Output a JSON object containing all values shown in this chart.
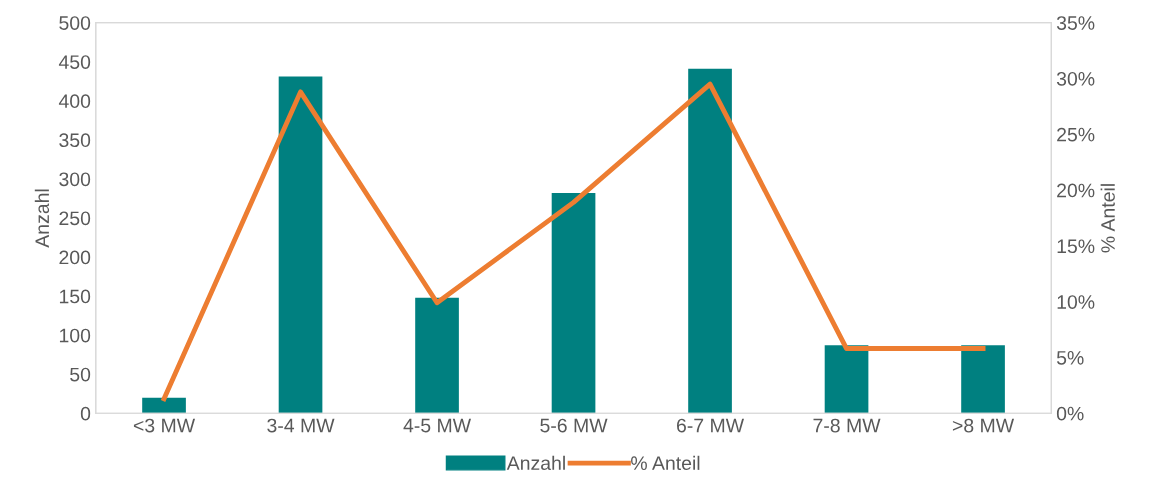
{
  "chart_data": {
    "type": "bar",
    "ylabel": "Anzahl",
    "y2label": "% Anteil",
    "categories": [
      "<3 MW",
      "3-4 MW",
      "4-5 MW",
      "5-6 MW",
      "6-7 MW",
      "7-8 MW",
      ">8 MW"
    ],
    "series": [
      {
        "name": "Anzahl",
        "color": "#008080",
        "values": [
          20,
          431,
          148,
          282,
          441,
          87,
          87
        ]
      },
      {
        "name": "% Anteil",
        "type": "line",
        "axis": "y2",
        "color": "#ed7d31",
        "values": [
          1.3,
          28.8,
          9.9,
          18.9,
          29.5,
          5.8,
          5.8
        ]
      }
    ],
    "ylim": [
      0,
      500
    ],
    "yticks": [
      0,
      50,
      100,
      150,
      200,
      250,
      300,
      350,
      400,
      450,
      500
    ],
    "y2lim": [
      0,
      35
    ],
    "y2ticks": [
      {
        "value": 0,
        "label": "0%"
      },
      {
        "value": 5,
        "label": "5%"
      },
      {
        "value": 10,
        "label": "10%"
      },
      {
        "value": 15,
        "label": "15%"
      },
      {
        "value": 20,
        "label": "20%"
      },
      {
        "value": 25,
        "label": "25%"
      },
      {
        "value": 30,
        "label": "30%"
      },
      {
        "value": 35,
        "label": "35%"
      }
    ],
    "grid": false,
    "legend": "bottom",
    "marker": "none",
    "line_style": "solid"
  }
}
